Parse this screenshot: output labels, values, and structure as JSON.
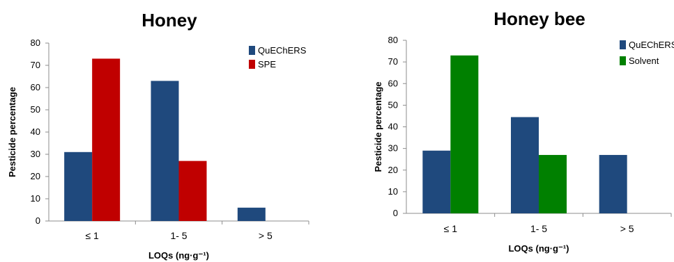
{
  "chart_data": [
    {
      "type": "bar",
      "title": "Honey",
      "xlabel": "LOQs (ng·g⁻¹)",
      "ylabel": "Pesticide percentage",
      "categories": [
        "≤ 1",
        "1- 5",
        "> 5"
      ],
      "ylim": [
        0,
        80
      ],
      "yticks": [
        0,
        10,
        20,
        30,
        40,
        50,
        60,
        70,
        80
      ],
      "grid": false,
      "legend": "top-right",
      "series": [
        {
          "name": "QuEChERS",
          "color": "#1f497d",
          "values": [
            31,
            63,
            6
          ]
        },
        {
          "name": "SPE",
          "color": "#c00000",
          "values": [
            73,
            27,
            0
          ]
        }
      ]
    },
    {
      "type": "bar",
      "title": "Honey bee",
      "xlabel": "LOQs (ng·g⁻¹)",
      "ylabel": "Pesticide percentage",
      "categories": [
        "≤ 1",
        "1- 5",
        "> 5"
      ],
      "ylim": [
        0,
        80
      ],
      "yticks": [
        0,
        10,
        20,
        30,
        40,
        50,
        60,
        70,
        80
      ],
      "grid": false,
      "legend": "top-right",
      "series": [
        {
          "name": "QuEChERS",
          "color": "#1f497d",
          "values": [
            29,
            44.5,
            27
          ]
        },
        {
          "name": "Solvent",
          "color": "#008000",
          "values": [
            73,
            27,
            0
          ]
        }
      ]
    }
  ]
}
